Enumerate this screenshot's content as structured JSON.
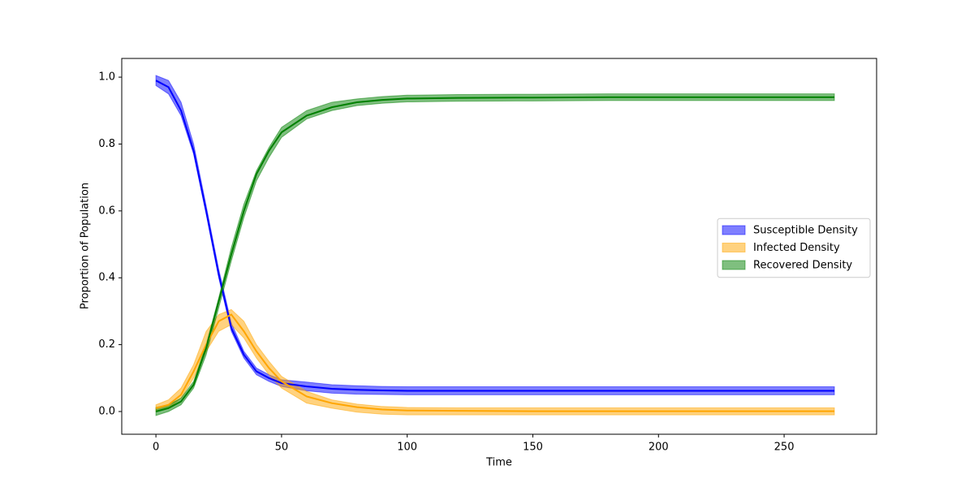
{
  "chart_data": {
    "type": "band-line",
    "xlabel": "Time",
    "ylabel": "Proportion of Population",
    "x": [
      0,
      5,
      10,
      15,
      20,
      25,
      30,
      35,
      40,
      45,
      50,
      60,
      70,
      80,
      90,
      100,
      120,
      150,
      180,
      210,
      240,
      270
    ],
    "series": [
      {
        "name": "Susceptible Density",
        "color": "#0000ff",
        "values": [
          0.99,
          0.97,
          0.9,
          0.78,
          0.6,
          0.41,
          0.25,
          0.17,
          0.12,
          0.1,
          0.085,
          0.075,
          0.068,
          0.065,
          0.063,
          0.062,
          0.062,
          0.062,
          0.062,
          0.062,
          0.062,
          0.062
        ],
        "lower": [
          0.975,
          0.95,
          0.885,
          0.77,
          0.59,
          0.4,
          0.24,
          0.16,
          0.11,
          0.09,
          0.075,
          0.062,
          0.055,
          0.052,
          0.051,
          0.05,
          0.05,
          0.05,
          0.05,
          0.05,
          0.05,
          0.05
        ],
        "upper": [
          1.005,
          0.99,
          0.925,
          0.8,
          0.615,
          0.425,
          0.265,
          0.18,
          0.13,
          0.11,
          0.095,
          0.088,
          0.08,
          0.077,
          0.075,
          0.074,
          0.074,
          0.074,
          0.074,
          0.074,
          0.074,
          0.074
        ]
      },
      {
        "name": "Infected Density",
        "color": "#ffa500",
        "values": [
          0.01,
          0.02,
          0.05,
          0.12,
          0.2,
          0.27,
          0.29,
          0.24,
          0.18,
          0.13,
          0.09,
          0.045,
          0.025,
          0.013,
          0.006,
          0.003,
          0.002,
          0.001,
          0.001,
          0.001,
          0.001,
          0.001
        ],
        "lower": [
          0.0,
          0.01,
          0.04,
          0.1,
          0.18,
          0.24,
          0.26,
          0.22,
          0.16,
          0.11,
          0.07,
          0.025,
          0.01,
          -0.002,
          -0.008,
          -0.01,
          -0.01,
          -0.01,
          -0.01,
          -0.01,
          -0.01,
          -0.01
        ],
        "upper": [
          0.02,
          0.035,
          0.07,
          0.14,
          0.24,
          0.29,
          0.305,
          0.27,
          0.2,
          0.15,
          0.105,
          0.06,
          0.035,
          0.022,
          0.015,
          0.012,
          0.011,
          0.011,
          0.011,
          0.011,
          0.011,
          0.011
        ]
      },
      {
        "name": "Recovered Density",
        "color": "#008000",
        "values": [
          0,
          0.01,
          0.03,
          0.08,
          0.19,
          0.33,
          0.47,
          0.6,
          0.71,
          0.78,
          0.835,
          0.885,
          0.91,
          0.925,
          0.932,
          0.936,
          0.938,
          0.939,
          0.94,
          0.94,
          0.94,
          0.94
        ],
        "lower": [
          -0.012,
          0.0,
          0.02,
          0.07,
          0.17,
          0.31,
          0.45,
          0.58,
          0.69,
          0.76,
          0.82,
          0.875,
          0.9,
          0.915,
          0.922,
          0.926,
          0.928,
          0.929,
          0.93,
          0.93,
          0.93,
          0.93
        ],
        "upper": [
          0.012,
          0.02,
          0.04,
          0.09,
          0.2,
          0.34,
          0.49,
          0.62,
          0.72,
          0.79,
          0.85,
          0.9,
          0.925,
          0.935,
          0.942,
          0.946,
          0.948,
          0.949,
          0.95,
          0.95,
          0.95,
          0.95
        ]
      }
    ],
    "xlim": [
      -13.6,
      286.8
    ],
    "xticks": [
      0,
      50,
      100,
      150,
      200,
      250
    ],
    "ylim": [
      -0.068,
      1.056
    ],
    "yticks": [
      {
        "value": 0,
        "label": "0.0"
      },
      0.2,
      0.4,
      0.6,
      0.8,
      {
        "value": 1,
        "label": "1.0"
      }
    ],
    "grid": false,
    "legend": "center right"
  }
}
